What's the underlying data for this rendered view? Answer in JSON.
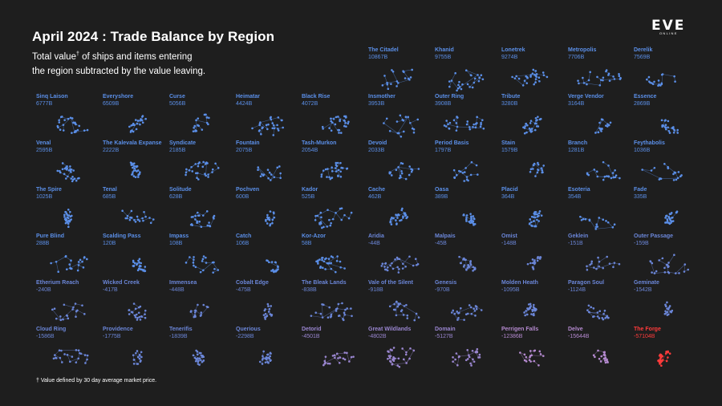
{
  "title": "April 2024 : Trade Balance by Region",
  "subtitle": {
    "line1_before": "Total value",
    "line1_sup": "†",
    "line1_after": " of ships and items entering",
    "line2": "the region subtracted by the value leaving."
  },
  "footnote": "† Value defined by 30 day average market price.",
  "logo": {
    "main": "EVE",
    "sub": "ONLINE"
  },
  "colors": {
    "background": "#1e1e1e",
    "positive": "#5b8fe8",
    "negative_small": "#6b86d8",
    "negative_mid": "#9a86d0",
    "negative_large": "#b58ad0",
    "extreme_negative": "#ff3b3b"
  },
  "chart_data": {
    "type": "small_multiples_map",
    "unit": "B ISK",
    "regions": [
      {
        "name": "The Citadel",
        "label": "10867B",
        "value": 10867
      },
      {
        "name": "Khanid",
        "label": "9755B",
        "value": 9755
      },
      {
        "name": "Lonetrek",
        "label": "9274B",
        "value": 9274
      },
      {
        "name": "Metropolis",
        "label": "7706B",
        "value": 7706
      },
      {
        "name": "Derelik",
        "label": "7569B",
        "value": 7569
      },
      {
        "name": "Sinq Laison",
        "label": "6777B",
        "value": 6777
      },
      {
        "name": "Everyshore",
        "label": "6509B",
        "value": 6509
      },
      {
        "name": "Curse",
        "label": "5056B",
        "value": 5056
      },
      {
        "name": "Heimatar",
        "label": "4424B",
        "value": 4424
      },
      {
        "name": "Black Rise",
        "label": "4072B",
        "value": 4072
      },
      {
        "name": "Insmother",
        "label": "3953B",
        "value": 3953
      },
      {
        "name": "Outer Ring",
        "label": "3908B",
        "value": 3908
      },
      {
        "name": "Tribute",
        "label": "3280B",
        "value": 3280
      },
      {
        "name": "Verge Vendor",
        "label": "3164B",
        "value": 3164
      },
      {
        "name": "Essence",
        "label": "2869B",
        "value": 2869
      },
      {
        "name": "Venal",
        "label": "2595B",
        "value": 2595
      },
      {
        "name": "The Kalevala Expanse",
        "label": "2222B",
        "value": 2222
      },
      {
        "name": "Syndicate",
        "label": "2185B",
        "value": 2185
      },
      {
        "name": "Fountain",
        "label": "2075B",
        "value": 2075
      },
      {
        "name": "Tash-Murkon",
        "label": "2054B",
        "value": 2054
      },
      {
        "name": "Devoid",
        "label": "2033B",
        "value": 2033
      },
      {
        "name": "Period Basis",
        "label": "1797B",
        "value": 1797
      },
      {
        "name": "Stain",
        "label": "1579B",
        "value": 1579
      },
      {
        "name": "Branch",
        "label": "1281B",
        "value": 1281
      },
      {
        "name": "Feythabolis",
        "label": "1036B",
        "value": 1036
      },
      {
        "name": "The Spire",
        "label": "1025B",
        "value": 1025
      },
      {
        "name": "Tenal",
        "label": "685B",
        "value": 685
      },
      {
        "name": "Solitude",
        "label": "628B",
        "value": 628
      },
      {
        "name": "Pochven",
        "label": "600B",
        "value": 600
      },
      {
        "name": "Kador",
        "label": "525B",
        "value": 525
      },
      {
        "name": "Cache",
        "label": "462B",
        "value": 462
      },
      {
        "name": "Oasa",
        "label": "389B",
        "value": 389
      },
      {
        "name": "Placid",
        "label": "364B",
        "value": 364
      },
      {
        "name": "Esoteria",
        "label": "354B",
        "value": 354
      },
      {
        "name": "Fade",
        "label": "335B",
        "value": 335
      },
      {
        "name": "Pure Blind",
        "label": "288B",
        "value": 288
      },
      {
        "name": "Scalding Pass",
        "label": "120B",
        "value": 120
      },
      {
        "name": "Impass",
        "label": "108B",
        "value": 108
      },
      {
        "name": "Catch",
        "label": "106B",
        "value": 106
      },
      {
        "name": "Kor-Azor",
        "label": "58B",
        "value": 58
      },
      {
        "name": "Aridia",
        "label": "-44B",
        "value": -44
      },
      {
        "name": "Malpais",
        "label": "-45B",
        "value": -45
      },
      {
        "name": "Omist",
        "label": "-148B",
        "value": -148
      },
      {
        "name": "Geklein",
        "label": "-151B",
        "value": -151
      },
      {
        "name": "Outer Passage",
        "label": "-159B",
        "value": -159
      },
      {
        "name": "Etherium Reach",
        "label": "-240B",
        "value": -240
      },
      {
        "name": "Wicked Creek",
        "label": "-417B",
        "value": -417
      },
      {
        "name": "Immensea",
        "label": "-448B",
        "value": -448
      },
      {
        "name": "Cobalt Edge",
        "label": "-475B",
        "value": -475
      },
      {
        "name": "The Bleak Lands",
        "label": "-838B",
        "value": -838
      },
      {
        "name": "Vale of the Silent",
        "label": "-918B",
        "value": -918
      },
      {
        "name": "Genesis",
        "label": "-970B",
        "value": -970
      },
      {
        "name": "Molden Heath",
        "label": "-1095B",
        "value": -1095
      },
      {
        "name": "Paragon Soul",
        "label": "-1124B",
        "value": -1124
      },
      {
        "name": "Geminate",
        "label": "-1542B",
        "value": -1542
      },
      {
        "name": "Cloud Ring",
        "label": "-1586B",
        "value": -1586
      },
      {
        "name": "Providence",
        "label": "-1775B",
        "value": -1775
      },
      {
        "name": "Tenerifis",
        "label": "-1839B",
        "value": -1839
      },
      {
        "name": "Querious",
        "label": "-2298B",
        "value": -2298
      },
      {
        "name": "Detorid",
        "label": "-4501B",
        "value": -4501
      },
      {
        "name": "Great Wildlands",
        "label": "-4802B",
        "value": -4802
      },
      {
        "name": "Domain",
        "label": "-5127B",
        "value": -5127
      },
      {
        "name": "Perrigen Falls",
        "label": "-12386B",
        "value": -12386
      },
      {
        "name": "Delve",
        "label": "-15644B",
        "value": -15644
      },
      {
        "name": "The Forge",
        "label": "-57104B",
        "value": -57104
      }
    ]
  }
}
